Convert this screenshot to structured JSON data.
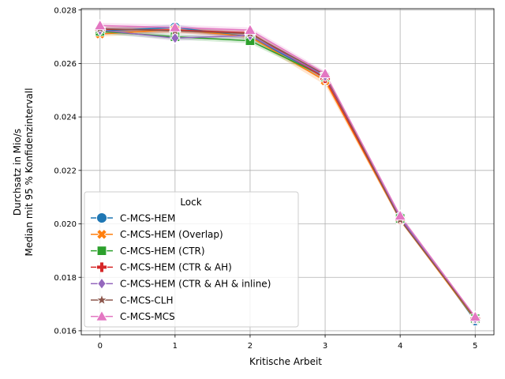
{
  "chart_data": {
    "type": "line",
    "xlabel": "Kritische Arbeit",
    "ylabel_lines": [
      "Durchsatz in Mio/s",
      "Median mit 95 % Konfidenzintervall"
    ],
    "x": [
      0,
      1,
      2,
      3,
      4,
      5
    ],
    "x_ticks": [
      "0",
      "1",
      "2",
      "3",
      "4",
      "5"
    ],
    "y_ticks": [
      "0.016",
      "0.018",
      "0.020",
      "0.022",
      "0.024",
      "0.026",
      "0.028"
    ],
    "ylim": [
      0.01585,
      0.02805
    ],
    "xlim": [
      -0.25,
      5.25
    ],
    "grid": true,
    "legend": {
      "title": "Lock",
      "placement": "lower-left"
    },
    "series": [
      {
        "name": "C-MCS-HEM",
        "color": "#1f77b4",
        "marker": "circle",
        "values": [
          0.02722,
          0.02735,
          0.027,
          0.0255,
          0.02025,
          0.01638
        ],
        "ci_low": [
          0.02712,
          0.02725,
          0.0269,
          0.0254,
          0.0202,
          0.01634
        ],
        "ci_high": [
          0.02732,
          0.02745,
          0.0271,
          0.0256,
          0.0203,
          0.01642
        ]
      },
      {
        "name": "C-MCS-HEM (Overlap)",
        "color": "#ff7f0e",
        "marker": "x-filled",
        "values": [
          0.0271,
          0.02727,
          0.027,
          0.02535,
          0.02015,
          0.01642
        ],
        "ci_low": [
          0.027,
          0.02717,
          0.0269,
          0.0252,
          0.02008,
          0.01638
        ],
        "ci_high": [
          0.0272,
          0.02737,
          0.0271,
          0.0255,
          0.02022,
          0.01646
        ]
      },
      {
        "name": "C-MCS-HEM (CTR)",
        "color": "#2ca02c",
        "marker": "square",
        "values": [
          0.0272,
          0.027,
          0.02685,
          0.0255,
          0.0202,
          0.01645
        ],
        "ci_low": [
          0.0271,
          0.0269,
          0.02675,
          0.0254,
          0.02015,
          0.01641
        ],
        "ci_high": [
          0.0273,
          0.0271,
          0.02695,
          0.0256,
          0.02025,
          0.01649
        ]
      },
      {
        "name": "C-MCS-HEM (CTR & AH)",
        "color": "#d62728",
        "marker": "plus-filled",
        "values": [
          0.02728,
          0.02725,
          0.02715,
          0.02545,
          0.02018,
          0.01648
        ],
        "ci_low": [
          0.02718,
          0.02715,
          0.02705,
          0.02535,
          0.02013,
          0.01644
        ],
        "ci_high": [
          0.02738,
          0.02735,
          0.02725,
          0.02555,
          0.02023,
          0.01652
        ]
      },
      {
        "name": "C-MCS-HEM (CTR & AH & inline)",
        "color": "#9467bd",
        "marker": "diamond",
        "values": [
          0.02725,
          0.02695,
          0.02705,
          0.02553,
          0.02022,
          0.01646
        ],
        "ci_low": [
          0.02715,
          0.02685,
          0.02695,
          0.02543,
          0.02017,
          0.01642
        ],
        "ci_high": [
          0.02735,
          0.02705,
          0.02715,
          0.02563,
          0.02027,
          0.0165
        ]
      },
      {
        "name": "C-MCS-CLH",
        "color": "#8c564b",
        "marker": "star",
        "values": [
          0.0273,
          0.02722,
          0.02712,
          0.02558,
          0.02015,
          0.01647
        ],
        "ci_low": [
          0.0272,
          0.02712,
          0.02702,
          0.02548,
          0.0201,
          0.01643
        ],
        "ci_high": [
          0.0274,
          0.02732,
          0.02722,
          0.02568,
          0.0202,
          0.01651
        ]
      },
      {
        "name": "C-MCS-MCS",
        "color": "#e377c2",
        "marker": "triangle",
        "values": [
          0.02742,
          0.02735,
          0.02725,
          0.02562,
          0.0203,
          0.01652
        ],
        "ci_low": [
          0.02732,
          0.02725,
          0.02715,
          0.02552,
          0.02025,
          0.01648
        ],
        "ci_high": [
          0.02752,
          0.02745,
          0.02735,
          0.02572,
          0.02035,
          0.01656
        ]
      }
    ]
  }
}
